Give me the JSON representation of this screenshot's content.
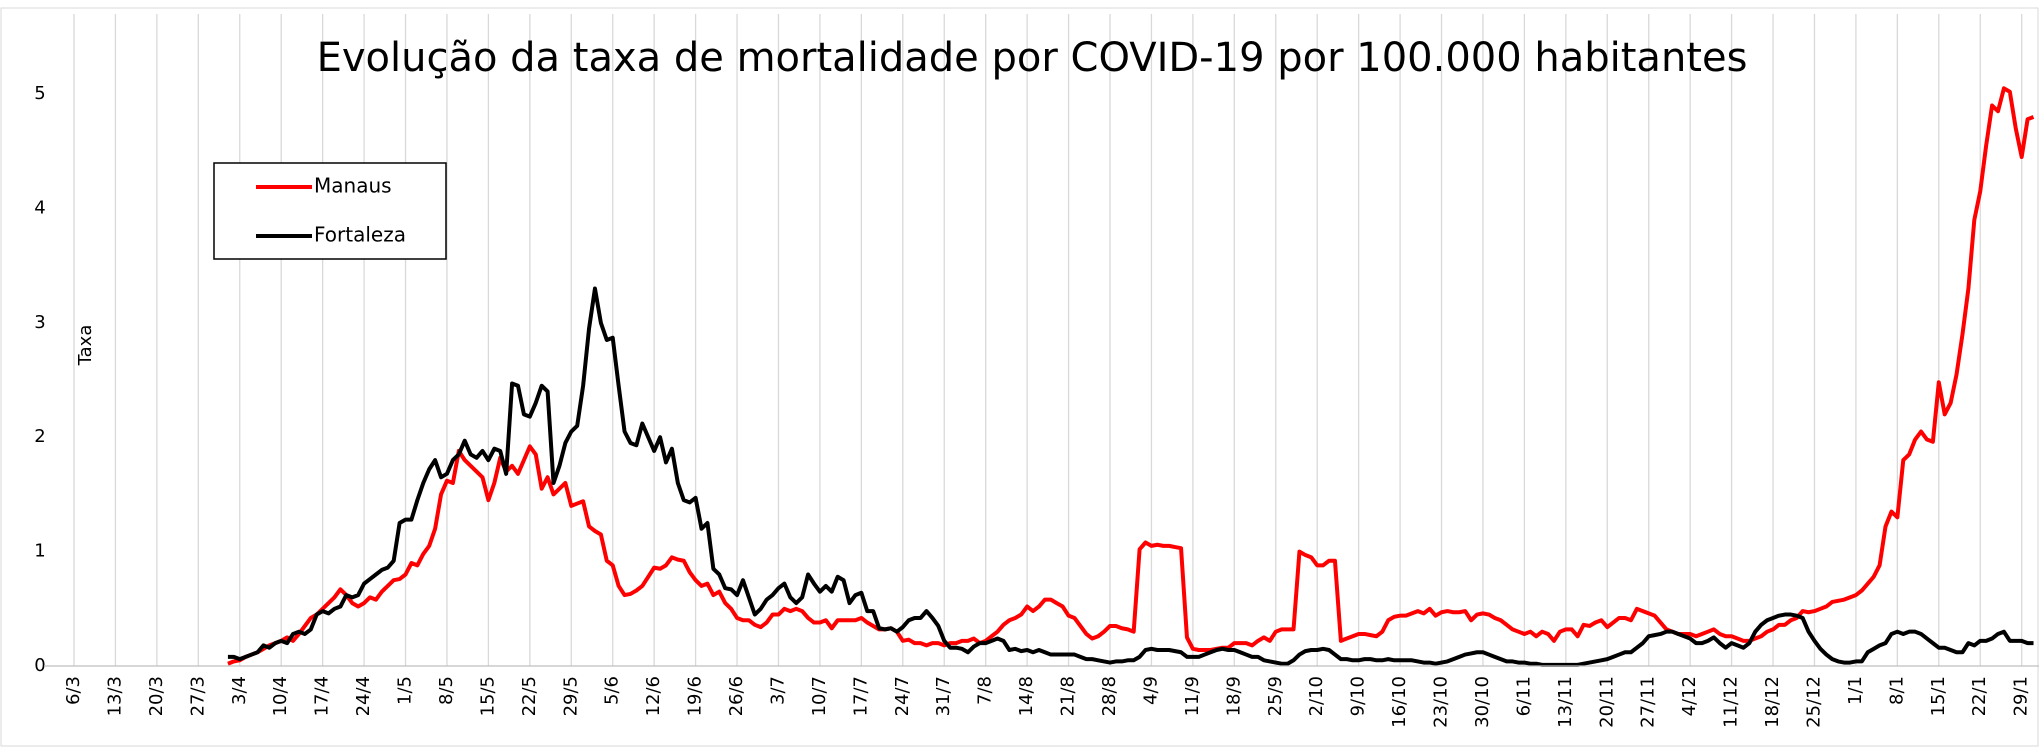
{
  "chart_data": {
    "type": "line",
    "title": "Evolução da taxa de mortalidade por COVID-19 por 100.000 habitantes",
    "y_label": "Taxa",
    "categories": [
      "6/3",
      null,
      null,
      null,
      null,
      null,
      null,
      "13/3",
      null,
      null,
      null,
      null,
      null,
      null,
      "20/3",
      null,
      null,
      null,
      null,
      null,
      null,
      "27/3",
      null,
      null,
      null,
      null,
      null,
      null,
      "3/4",
      null,
      null,
      null,
      null,
      null,
      null,
      "10/4",
      null,
      null,
      null,
      null,
      null,
      null,
      "17/4",
      null,
      null,
      null,
      null,
      null,
      null,
      "24/4",
      null,
      null,
      null,
      null,
      null,
      null,
      "1/5",
      null,
      null,
      null,
      null,
      null,
      null,
      "8/5",
      null,
      null,
      null,
      null,
      null,
      null,
      "15/5",
      null,
      null,
      null,
      null,
      null,
      null,
      "22/5",
      null,
      null,
      null,
      null,
      null,
      null,
      "29/5",
      null,
      null,
      null,
      null,
      null,
      null,
      "5/6",
      null,
      null,
      null,
      null,
      null,
      null,
      "12/6",
      null,
      null,
      null,
      null,
      null,
      null,
      "19/6",
      null,
      null,
      null,
      null,
      null,
      null,
      "26/6",
      null,
      null,
      null,
      null,
      null,
      null,
      "3/7",
      null,
      null,
      null,
      null,
      null,
      null,
      "10/7",
      null,
      null,
      null,
      null,
      null,
      null,
      "17/7",
      null,
      null,
      null,
      null,
      null,
      null,
      "24/7",
      null,
      null,
      null,
      null,
      null,
      null,
      "31/7",
      null,
      null,
      null,
      null,
      null,
      null,
      "7/8",
      null,
      null,
      null,
      null,
      null,
      null,
      "14/8",
      null,
      null,
      null,
      null,
      null,
      null,
      "21/8",
      null,
      null,
      null,
      null,
      null,
      null,
      "28/8",
      null,
      null,
      null,
      null,
      null,
      null,
      "4/9",
      null,
      null,
      null,
      null,
      null,
      null,
      "11/9",
      null,
      null,
      null,
      null,
      null,
      null,
      "18/9",
      null,
      null,
      null,
      null,
      null,
      null,
      "25/9",
      null,
      null,
      null,
      null,
      null,
      null,
      "2/10",
      null,
      null,
      null,
      null,
      null,
      null,
      "9/10",
      null,
      null,
      null,
      null,
      null,
      null,
      "16/10",
      null,
      null,
      null,
      null,
      null,
      null,
      "23/10",
      null,
      null,
      null,
      null,
      null,
      null,
      "30/10",
      null,
      null,
      null,
      null,
      null,
      null,
      "6/11",
      null,
      null,
      null,
      null,
      null,
      null,
      "13/11",
      null,
      null,
      null,
      null,
      null,
      null,
      "20/11",
      null,
      null,
      null,
      null,
      null,
      null,
      "27/11",
      null,
      null,
      null,
      null,
      null,
      null,
      "4/12",
      null,
      null,
      null,
      null,
      null,
      null,
      "11/12",
      null,
      null,
      null,
      null,
      null,
      null,
      "18/12",
      null,
      null,
      null,
      null,
      null,
      null,
      "25/12",
      null,
      null,
      null,
      null,
      null,
      null,
      "1/1",
      null,
      null,
      null,
      null,
      null,
      null,
      "8/1",
      null,
      null,
      null,
      null,
      null,
      null,
      "15/1",
      null,
      null,
      null,
      null,
      null,
      null,
      "22/1",
      null,
      null,
      null,
      null,
      null,
      null,
      "29/1",
      null,
      null
    ],
    "series": [
      {
        "name": "Manaus",
        "color": "#ff0000",
        "values": [
          null,
          null,
          null,
          null,
          null,
          null,
          null,
          null,
          null,
          null,
          null,
          null,
          null,
          null,
          null,
          null,
          null,
          null,
          null,
          null,
          null,
          null,
          null,
          null,
          null,
          null,
          0.02,
          0.04,
          0.05,
          0.08,
          0.1,
          0.12,
          0.15,
          0.18,
          0.2,
          0.22,
          0.25,
          0.22,
          0.28,
          0.35,
          0.42,
          0.45,
          0.5,
          0.55,
          0.6,
          0.67,
          0.62,
          0.55,
          0.52,
          0.55,
          0.6,
          0.58,
          0.65,
          0.7,
          0.75,
          0.76,
          0.8,
          0.9,
          0.88,
          0.98,
          1.05,
          1.2,
          1.5,
          1.62,
          1.6,
          1.88,
          1.8,
          1.75,
          1.7,
          1.65,
          1.45,
          1.6,
          1.82,
          1.7,
          1.75,
          1.68,
          1.8,
          1.92,
          1.85,
          1.55,
          1.65,
          1.5,
          1.55,
          1.6,
          1.4,
          1.42,
          1.44,
          1.22,
          1.18,
          1.15,
          0.92,
          0.88,
          0.7,
          0.62,
          0.63,
          0.66,
          0.7,
          0.78,
          0.86,
          0.85,
          0.88,
          0.95,
          0.93,
          0.92,
          0.82,
          0.75,
          0.7,
          0.72,
          0.62,
          0.65,
          0.55,
          0.5,
          0.42,
          0.4,
          0.4,
          0.36,
          0.34,
          0.38,
          0.45,
          0.45,
          0.5,
          0.48,
          0.5,
          0.48,
          0.42,
          0.38,
          0.38,
          0.4,
          0.33,
          0.4,
          0.4,
          0.4,
          0.4,
          0.42,
          0.38,
          0.35,
          0.32,
          0.32,
          0.33,
          0.3,
          0.22,
          0.23,
          0.2,
          0.2,
          0.18,
          0.2,
          0.2,
          0.18,
          0.2,
          0.2,
          0.22,
          0.22,
          0.24,
          0.2,
          0.22,
          0.26,
          0.3,
          0.36,
          0.4,
          0.42,
          0.45,
          0.52,
          0.48,
          0.52,
          0.58,
          0.58,
          0.55,
          0.52,
          0.44,
          0.42,
          0.35,
          0.28,
          0.24,
          0.26,
          0.3,
          0.35,
          0.35,
          0.33,
          0.32,
          0.3,
          1.02,
          1.08,
          1.05,
          1.06,
          1.05,
          1.05,
          1.04,
          1.03,
          0.25,
          0.15,
          0.14,
          0.14,
          0.14,
          0.15,
          0.16,
          0.16,
          0.2,
          0.2,
          0.2,
          0.18,
          0.22,
          0.25,
          0.22,
          0.3,
          0.32,
          0.32,
          0.32,
          1.0,
          0.97,
          0.95,
          0.88,
          0.88,
          0.92,
          0.92,
          0.22,
          0.24,
          0.26,
          0.28,
          0.28,
          0.27,
          0.26,
          0.3,
          0.4,
          0.43,
          0.44,
          0.44,
          0.46,
          0.48,
          0.46,
          0.5,
          0.44,
          0.47,
          0.48,
          0.47,
          0.47,
          0.48,
          0.4,
          0.45,
          0.46,
          0.45,
          0.42,
          0.4,
          0.36,
          0.32,
          0.3,
          0.28,
          0.3,
          0.26,
          0.3,
          0.28,
          0.22,
          0.3,
          0.32,
          0.32,
          0.26,
          0.36,
          0.35,
          0.38,
          0.4,
          0.34,
          0.38,
          0.42,
          0.42,
          0.4,
          0.5,
          0.48,
          0.46,
          0.44,
          0.38,
          0.32,
          0.3,
          0.28,
          0.28,
          0.28,
          0.26,
          0.28,
          0.3,
          0.32,
          0.28,
          0.26,
          0.26,
          0.24,
          0.22,
          0.22,
          0.24,
          0.26,
          0.3,
          0.32,
          0.36,
          0.36,
          0.4,
          0.42,
          0.48,
          0.47,
          0.48,
          0.5,
          0.52,
          0.56,
          0.57,
          0.58,
          0.6,
          0.62,
          0.66,
          0.72,
          0.78,
          0.88,
          1.22,
          1.35,
          1.3,
          1.8,
          1.85,
          1.98,
          2.05,
          1.98,
          1.96,
          2.48,
          2.2,
          2.3,
          2.55,
          2.9,
          3.3,
          3.9,
          4.15,
          4.55,
          4.9,
          4.85,
          5.05,
          5.02,
          4.7,
          4.45,
          4.78,
          4.8
        ]
      },
      {
        "name": "Fortaleza",
        "color": "#000000",
        "values": [
          null,
          null,
          null,
          null,
          null,
          null,
          null,
          null,
          null,
          null,
          null,
          null,
          null,
          null,
          null,
          null,
          null,
          null,
          null,
          null,
          null,
          null,
          null,
          null,
          null,
          null,
          0.08,
          0.08,
          0.06,
          0.08,
          0.1,
          0.12,
          0.18,
          0.16,
          0.2,
          0.22,
          0.2,
          0.28,
          0.3,
          0.28,
          0.32,
          0.45,
          0.48,
          0.46,
          0.5,
          0.52,
          0.62,
          0.6,
          0.62,
          0.72,
          0.76,
          0.8,
          0.84,
          0.86,
          0.92,
          1.25,
          1.28,
          1.28,
          1.45,
          1.6,
          1.72,
          1.8,
          1.65,
          1.68,
          1.8,
          1.85,
          1.97,
          1.85,
          1.82,
          1.88,
          1.8,
          1.9,
          1.88,
          1.68,
          2.47,
          2.45,
          2.2,
          2.18,
          2.3,
          2.45,
          2.4,
          1.6,
          1.75,
          1.95,
          2.05,
          2.1,
          2.45,
          2.95,
          3.3,
          3.0,
          2.85,
          2.87,
          2.45,
          2.05,
          1.95,
          1.93,
          2.12,
          2.0,
          1.88,
          2.0,
          1.78,
          1.9,
          1.6,
          1.45,
          1.43,
          1.47,
          1.2,
          1.25,
          0.85,
          0.8,
          0.68,
          0.67,
          0.62,
          0.75,
          0.6,
          0.45,
          0.5,
          0.58,
          0.62,
          0.68,
          0.72,
          0.6,
          0.55,
          0.6,
          0.8,
          0.72,
          0.65,
          0.7,
          0.65,
          0.78,
          0.75,
          0.55,
          0.62,
          0.64,
          0.48,
          0.48,
          0.33,
          0.32,
          0.33,
          0.3,
          0.34,
          0.4,
          0.42,
          0.42,
          0.48,
          0.42,
          0.35,
          0.22,
          0.16,
          0.16,
          0.15,
          0.12,
          0.17,
          0.2,
          0.2,
          0.22,
          0.24,
          0.22,
          0.14,
          0.15,
          0.13,
          0.14,
          0.12,
          0.14,
          0.12,
          0.1,
          0.1,
          0.1,
          0.1,
          0.1,
          0.08,
          0.06,
          0.06,
          0.05,
          0.04,
          0.03,
          0.04,
          0.04,
          0.05,
          0.05,
          0.08,
          0.14,
          0.15,
          0.14,
          0.14,
          0.14,
          0.13,
          0.12,
          0.08,
          0.08,
          0.08,
          0.1,
          0.12,
          0.14,
          0.15,
          0.14,
          0.14,
          0.12,
          0.1,
          0.08,
          0.08,
          0.05,
          0.04,
          0.03,
          0.02,
          0.02,
          0.05,
          0.1,
          0.13,
          0.14,
          0.14,
          0.15,
          0.14,
          0.1,
          0.06,
          0.06,
          0.05,
          0.05,
          0.06,
          0.06,
          0.05,
          0.05,
          0.06,
          0.05,
          0.05,
          0.05,
          0.05,
          0.04,
          0.03,
          0.03,
          0.02,
          0.03,
          0.04,
          0.06,
          0.08,
          0.1,
          0.11,
          0.12,
          0.12,
          0.1,
          0.08,
          0.06,
          0.04,
          0.04,
          0.03,
          0.03,
          0.02,
          0.02,
          0.01,
          0.01,
          0.01,
          0.01,
          0.01,
          0.01,
          0.01,
          0.02,
          0.03,
          0.04,
          0.05,
          0.06,
          0.08,
          0.1,
          0.12,
          0.12,
          0.16,
          0.2,
          0.26,
          0.27,
          0.28,
          0.3,
          0.3,
          0.28,
          0.26,
          0.24,
          0.2,
          0.2,
          0.22,
          0.25,
          0.2,
          0.16,
          0.2,
          0.18,
          0.16,
          0.2,
          0.3,
          0.36,
          0.4,
          0.42,
          0.44,
          0.45,
          0.45,
          0.44,
          0.42,
          0.3,
          0.22,
          0.15,
          0.1,
          0.06,
          0.04,
          0.03,
          0.03,
          0.04,
          0.04,
          0.12,
          0.15,
          0.18,
          0.2,
          0.28,
          0.3,
          0.28,
          0.3,
          0.3,
          0.28,
          0.24,
          0.2,
          0.16,
          0.16,
          0.14,
          0.12,
          0.12,
          0.2,
          0.18,
          0.22,
          0.22,
          0.24,
          0.28,
          0.3,
          0.22,
          0.22,
          0.22,
          0.2,
          0.2
        ]
      }
    ],
    "ylim": [
      0,
      5.7
    ],
    "yticks": [
      0,
      1,
      2,
      3,
      4,
      5
    ],
    "grid": "x",
    "legend": "upper left"
  }
}
